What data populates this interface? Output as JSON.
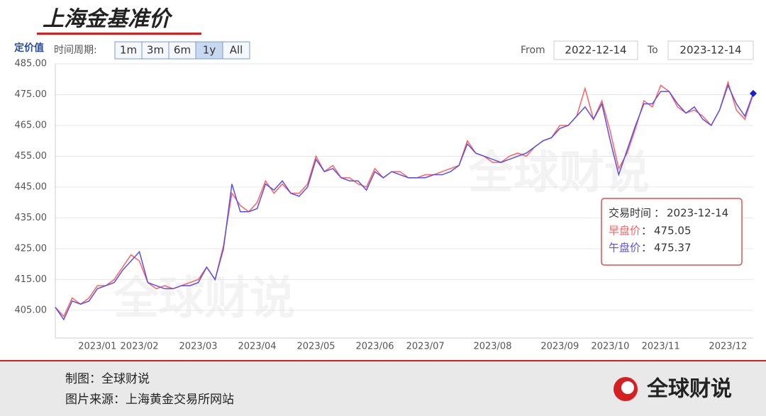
{
  "header": {
    "title": "上海金基准价"
  },
  "chart_data": {
    "type": "line",
    "y_label": "定价值",
    "range_selector": {
      "label": "时间周期:",
      "buttons": [
        "1m",
        "3m",
        "6m",
        "1y",
        "All"
      ],
      "active": 3
    },
    "from_label": "From",
    "from": "2022-12-14",
    "to_label": "To",
    "to": "2023-12-14",
    "watermark": "全球财说",
    "categories": [
      null,
      null,
      null,
      null,
      null,
      "2023/01",
      null,
      null,
      null,
      null,
      "2023/02",
      null,
      null,
      null,
      null,
      null,
      null,
      "2023/03",
      null,
      null,
      null,
      null,
      null,
      null,
      "2023/04",
      null,
      null,
      null,
      null,
      null,
      null,
      "2023/05",
      null,
      null,
      null,
      null,
      null,
      null,
      "2023/06",
      null,
      null,
      null,
      null,
      null,
      "2023/07",
      null,
      null,
      null,
      null,
      null,
      null,
      null,
      "2023/08",
      null,
      null,
      null,
      null,
      null,
      null,
      null,
      "2023/09",
      null,
      null,
      null,
      null,
      null,
      "2023/10",
      null,
      null,
      null,
      null,
      null,
      "2023/11",
      null,
      null,
      null,
      null,
      null,
      null,
      null,
      "2023/12",
      null,
      null,
      null
    ],
    "series": [
      {
        "name": "早盘价",
        "color": "#ff6060",
        "values": [
          406,
          403,
          409,
          407,
          409,
          413,
          413,
          415,
          419,
          423,
          421,
          414,
          412,
          413,
          412,
          413,
          414,
          415,
          419,
          415,
          426,
          443,
          439,
          437,
          440,
          447,
          443,
          446,
          443,
          443,
          446,
          455,
          450,
          452,
          448,
          448,
          446,
          445,
          451,
          448,
          450,
          450,
          448,
          448,
          449,
          449,
          450,
          451,
          452,
          460,
          456,
          455,
          453,
          453,
          455,
          456,
          455,
          458,
          460,
          461,
          465,
          465,
          468,
          477,
          467,
          473,
          463,
          451,
          456,
          464,
          473,
          471,
          478,
          476,
          471,
          469,
          470,
          468,
          465,
          470,
          479,
          470,
          467,
          475.05
        ]
      },
      {
        "name": "午盘价",
        "color": "#5a50e6",
        "values": [
          406,
          402,
          408,
          407,
          408,
          412,
          413,
          414,
          418,
          421,
          424,
          414,
          413,
          412,
          412,
          413,
          413,
          414,
          419,
          415,
          425,
          446,
          437,
          437,
          438,
          446,
          444,
          447,
          443,
          442,
          445,
          454,
          450,
          451,
          448,
          447,
          447,
          444,
          450,
          448,
          450,
          449,
          448,
          448,
          448,
          449,
          449,
          450,
          452,
          459,
          456,
          455,
          454,
          453,
          454,
          455,
          456,
          458,
          460,
          461,
          464,
          465,
          468,
          471,
          467,
          472,
          460,
          449,
          457,
          465,
          472,
          472,
          476,
          476,
          472,
          469,
          471,
          467,
          465,
          470,
          478,
          472,
          468,
          475.37
        ]
      }
    ],
    "ylim": [
      396,
      485
    ],
    "yticks": [
      {
        "value": 405,
        "label": "405.00"
      },
      {
        "value": 415,
        "label": "415.00"
      },
      {
        "value": 425,
        "label": "425.00"
      },
      {
        "value": 435,
        "label": "435.00"
      },
      {
        "value": 445,
        "label": "445.00"
      },
      {
        "value": 455,
        "label": "455.00"
      },
      {
        "value": 465,
        "label": "465.00"
      },
      {
        "value": 475,
        "label": "475.00"
      },
      {
        "value": 485,
        "label": "485.00"
      }
    ],
    "grid": true,
    "tooltip": {
      "label": "交易时间",
      "date": "2023-12-14",
      "separator": "："
    }
  },
  "footer": {
    "credit": "制图：全球财说",
    "source": "图片来源：上海黄金交易所网站",
    "logo": "全球财说"
  }
}
